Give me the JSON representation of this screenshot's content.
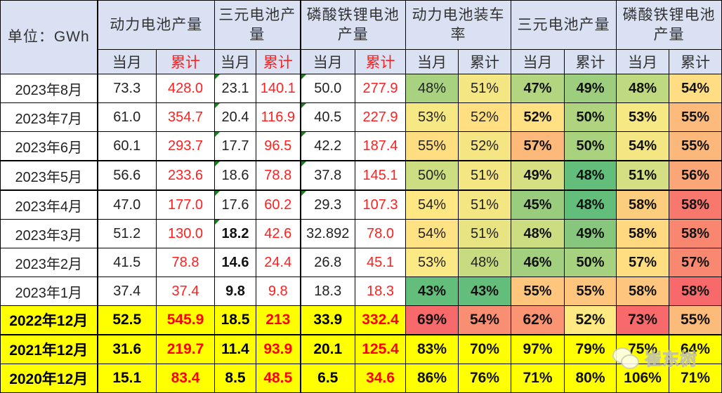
{
  "chart_data": {
    "type": "table",
    "unit_label": "单位：GWh",
    "groups": [
      "动力电池产量",
      "三元电池产量",
      "磷酸铁锂电池产量",
      "动力电池装车率",
      "三元电池产量",
      "磷酸铁锂电池产量"
    ],
    "sub_headers": [
      "当月",
      "累计"
    ],
    "rows": [
      {
        "label": "2023年8月",
        "values": [
          "73.3",
          "428.0",
          "23.1",
          "140.1",
          "50.0",
          "277.9"
        ],
        "pcts": [
          "48%",
          "51%",
          "47%",
          "49%",
          "48%",
          "54%"
        ],
        "colors": [
          "#A8D27F",
          "#F3E683",
          "#B3D580",
          "#9DCE7E",
          "#BFD981",
          "#FFDD82"
        ]
      },
      {
        "label": "2023年7月",
        "values": [
          "61.0",
          "354.7",
          "20.4",
          "116.9",
          "40.5",
          "227.9"
        ],
        "pcts": [
          "53%",
          "52%",
          "52%",
          "50%",
          "53%",
          "55%"
        ],
        "colors": [
          "#F6E883",
          "#FFDF81",
          "#FFE083",
          "#AFD47F",
          "#F6E883",
          "#FCBB7B"
        ]
      },
      {
        "label": "2023年6月",
        "values": [
          "60.1",
          "293.7",
          "17.7",
          "96.5",
          "42.2",
          "187.4"
        ],
        "pcts": [
          "55%",
          "52%",
          "57%",
          "50%",
          "54%",
          "55%"
        ],
        "colors": [
          "#FFDD81",
          "#F5E683",
          "#FDB97A",
          "#A9D27F",
          "#F4E783",
          "#FCB87A"
        ]
      },
      {
        "label": "2023年5月",
        "values": [
          "56.6",
          "233.6",
          "18.6",
          "78.8",
          "37.8",
          "145.1"
        ],
        "pcts": [
          "50%",
          "51%",
          "49%",
          "48%",
          "51%",
          "56%"
        ],
        "colors": [
          "#CDDD82",
          "#F3E683",
          "#D6E082",
          "#63BE7B",
          "#D3DF82",
          "#FBA677"
        ]
      },
      {
        "label": "2023年4月",
        "values": [
          "47.0",
          "177.0",
          "17.6",
          "60.2",
          "29.3",
          "107.3"
        ],
        "pcts": [
          "54%",
          "51%",
          "45%",
          "48%",
          "58%",
          "58%"
        ],
        "colors": [
          "#FFE883",
          "#F3E683",
          "#9ACC7D",
          "#63BE7B",
          "#FDCD7E",
          "#F8786E"
        ]
      },
      {
        "label": "2023年3月",
        "values": [
          "51.2",
          "130.0",
          "18.2",
          "42.6",
          "32.892",
          "78.0"
        ],
        "pcts": [
          "54%",
          "51%",
          "48%",
          "49%",
          "58%",
          "58%"
        ],
        "colors": [
          "#FFE283",
          "#E8E482",
          "#CCDC81",
          "#86C77D",
          "#FFD880",
          "#F98770"
        ]
      },
      {
        "label": "2023年2月",
        "values": [
          "41.5",
          "78.8",
          "14.6",
          "24.4",
          "26.8",
          "45.1"
        ],
        "pcts": [
          "53%",
          "48%",
          "46%",
          "50%",
          "57%",
          "57%"
        ],
        "colors": [
          "#FAE984",
          "#C8DB81",
          "#A3D07E",
          "#A6D17F",
          "#FFDE81",
          "#F98870"
        ]
      },
      {
        "label": "2023年1月",
        "values": [
          "37.4",
          "37.4",
          "9.8",
          "9.8",
          "18.3",
          "18.3"
        ],
        "pcts": [
          "43%",
          "43%",
          "55%",
          "55%",
          "58%",
          "58%"
        ],
        "colors": [
          "#63BE7B",
          "#63BE7B",
          "#FEC57D",
          "#FEC57D",
          "#FDC57D",
          "#F8696B"
        ]
      },
      {
        "label": "2022年12月",
        "values": [
          "52.5",
          "545.9",
          "18.5",
          "213",
          "33.9",
          "332.4"
        ],
        "pcts": [
          "69%",
          "54%",
          "62%",
          "52%",
          "73%",
          "55%"
        ],
        "colors": [
          "#F8696B",
          "#FA8E72",
          "#FA9473",
          "#FEE983",
          "#F8696B",
          "#FCBB7B"
        ]
      },
      {
        "label": "2021年12月",
        "values": [
          "31.6",
          "219.7",
          "11.4",
          "93.9",
          "20.1",
          "125.4"
        ],
        "pcts": [
          "83%",
          "70%",
          "97%",
          "79%",
          "75%",
          "64%"
        ],
        "colors": [
          "#FFFF00",
          "#FFFF00",
          "#FFFF00",
          "#FFFF00",
          "#FFFF00",
          "#FFFF00"
        ]
      },
      {
        "label": "2020年12月",
        "values": [
          "15.1",
          "83.4",
          "8.5",
          "48.5",
          "6.5",
          "34.6"
        ],
        "pcts": [
          "86%",
          "76%",
          "71%",
          "80%",
          "106%",
          "71%"
        ],
        "colors": [
          "#FFFF00",
          "#FFFF00",
          "#FFFF00",
          "#FFFF00",
          "#FFFF00",
          "#FFFF00"
        ]
      }
    ]
  },
  "colors": {
    "header_bg": "#D9E1F2",
    "cumulative_text": "#FF2020",
    "highlight_row": "#FFFF00"
  },
  "watermark": {
    "icon": "wechat-icon",
    "text": "崔东树"
  }
}
